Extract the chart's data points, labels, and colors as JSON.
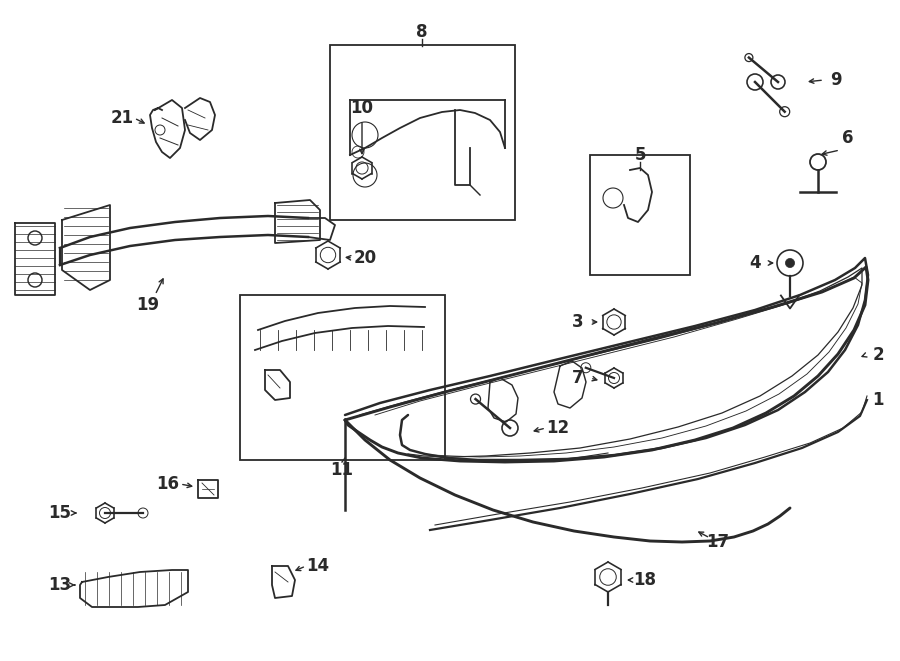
{
  "bg_color": "#ffffff",
  "line_color": "#2a2a2a",
  "lw": 1.3,
  "fig_width": 9.0,
  "fig_height": 6.61
}
